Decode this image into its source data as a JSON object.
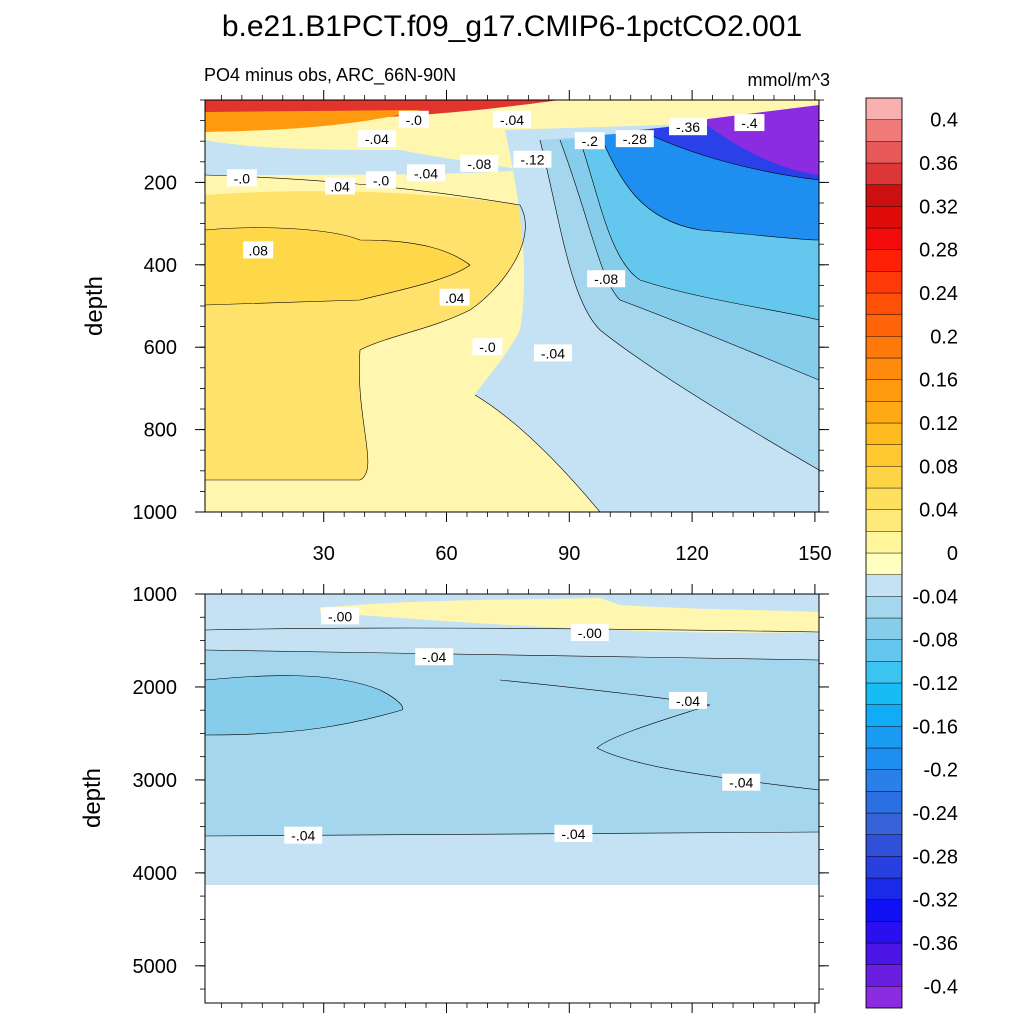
{
  "chart_data": {
    "type": "heatmap",
    "title": "b.e21.B1PCT.f09_g17.CMIP6-1pctCO2.001",
    "subtitle": "PO4 minus obs, ARC_66N-90N",
    "units": "mmol/m^3",
    "xlabel": "",
    "ylabel": "depth",
    "x_ticks": [
      30,
      60,
      90,
      120,
      150
    ],
    "x_range": [
      1,
      151
    ],
    "panels": [
      {
        "name": "upper",
        "ylim": [
          0,
          1000
        ],
        "y_ticks": [
          200,
          400,
          600,
          800,
          1000
        ],
        "contour_labels": [
          {
            "text": "-.0",
            "x": 52,
            "y": 48
          },
          {
            "text": "-.04",
            "x": 76,
            "y": 48
          },
          {
            "text": "-.04",
            "x": 43,
            "y": 95
          },
          {
            "text": "-.36",
            "x": 119,
            "y": 66
          },
          {
            "text": "-.4",
            "x": 134,
            "y": 56
          },
          {
            "text": "-.28",
            "x": 106,
            "y": 95
          },
          {
            "text": "-.2",
            "x": 95,
            "y": 100
          },
          {
            "text": "-.12",
            "x": 81,
            "y": 145
          },
          {
            "text": "-.08",
            "x": 68,
            "y": 155
          },
          {
            "text": "-.04",
            "x": 55,
            "y": 178
          },
          {
            "text": "-.0",
            "x": 10,
            "y": 190
          },
          {
            "text": "-.0",
            "x": 44,
            "y": 195
          },
          {
            "text": ".04",
            "x": 34,
            "y": 210
          },
          {
            "text": ".08",
            "x": 14,
            "y": 365
          },
          {
            "text": ".04",
            "x": 62,
            "y": 480
          },
          {
            "text": "-.08",
            "x": 99,
            "y": 435
          },
          {
            "text": "-.0",
            "x": 70,
            "y": 600
          },
          {
            "text": "-.04",
            "x": 86,
            "y": 615
          }
        ]
      },
      {
        "name": "lower",
        "ylim": [
          1000,
          5400
        ],
        "y_ticks": [
          1000,
          2000,
          3000,
          4000,
          5000
        ],
        "contour_labels": [
          {
            "text": "-.00",
            "x": 34,
            "y": 1240
          },
          {
            "text": "-.00",
            "x": 95,
            "y": 1420
          },
          {
            "text": "-.04",
            "x": 57,
            "y": 1680
          },
          {
            "text": "-.04",
            "x": 119,
            "y": 2150
          },
          {
            "text": "-.04",
            "x": 132,
            "y": 3030
          },
          {
            "text": "-.04",
            "x": 25,
            "y": 3600
          },
          {
            "text": "-.04",
            "x": 91,
            "y": 3580
          }
        ]
      }
    ],
    "colorbar": {
      "levels": [
        -0.42,
        -0.4,
        -0.38,
        -0.36,
        -0.34,
        -0.32,
        -0.3,
        -0.28,
        -0.26,
        -0.24,
        -0.22,
        -0.2,
        -0.18,
        -0.16,
        -0.14,
        -0.12,
        -0.1,
        -0.08,
        -0.06,
        -0.04,
        -0.02,
        0,
        0.02,
        0.04,
        0.06,
        0.08,
        0.1,
        0.12,
        0.14,
        0.16,
        0.18,
        0.2,
        0.22,
        0.24,
        0.26,
        0.28,
        0.3,
        0.32,
        0.34,
        0.36,
        0.38,
        0.4,
        0.42
      ],
      "colors": [
        "#8b2be2",
        "#6a1fe0",
        "#4b16e6",
        "#2a0ff0",
        "#1010f5",
        "#1a2ae8",
        "#2840e0",
        "#3050d8",
        "#3862d8",
        "#2a70e2",
        "#2a80e8",
        "#1e8ef0",
        "#1a9cf4",
        "#12acf6",
        "#18bcf4",
        "#3cc4f0",
        "#64c8ee",
        "#86cdec",
        "#a4d6ee",
        "#c4e2f4",
        "#ffffc0",
        "#fff59a",
        "#ffe97a",
        "#ffdf5e",
        "#ffd444",
        "#ffc830",
        "#ffba1e",
        "#ffaa12",
        "#ff9a0e",
        "#ff8a0c",
        "#ff780a",
        "#ff6408",
        "#ff5008",
        "#ff3a08",
        "#ff2008",
        "#f40c0c",
        "#e00c0c",
        "#cc1010",
        "#dd3636",
        "#e85a5a",
        "#f07a7a",
        "#f8b0b0"
      ],
      "tick_labels": [
        "0.4",
        "0.36",
        "0.32",
        "0.28",
        "0.24",
        "0.2",
        "0.16",
        "0.12",
        "0.08",
        "0.04",
        "0",
        "-0.04",
        "-0.08",
        "-0.12",
        "-0.16",
        "-0.2",
        "-0.24",
        "-0.28",
        "-0.32",
        "-0.36",
        "-0.4"
      ],
      "tick_values": [
        0.4,
        0.36,
        0.32,
        0.28,
        0.24,
        0.2,
        0.16,
        0.12,
        0.08,
        0.04,
        0,
        -0.04,
        -0.08,
        -0.12,
        -0.16,
        -0.2,
        -0.24,
        -0.28,
        -0.32,
        -0.36,
        -0.4
      ]
    }
  }
}
